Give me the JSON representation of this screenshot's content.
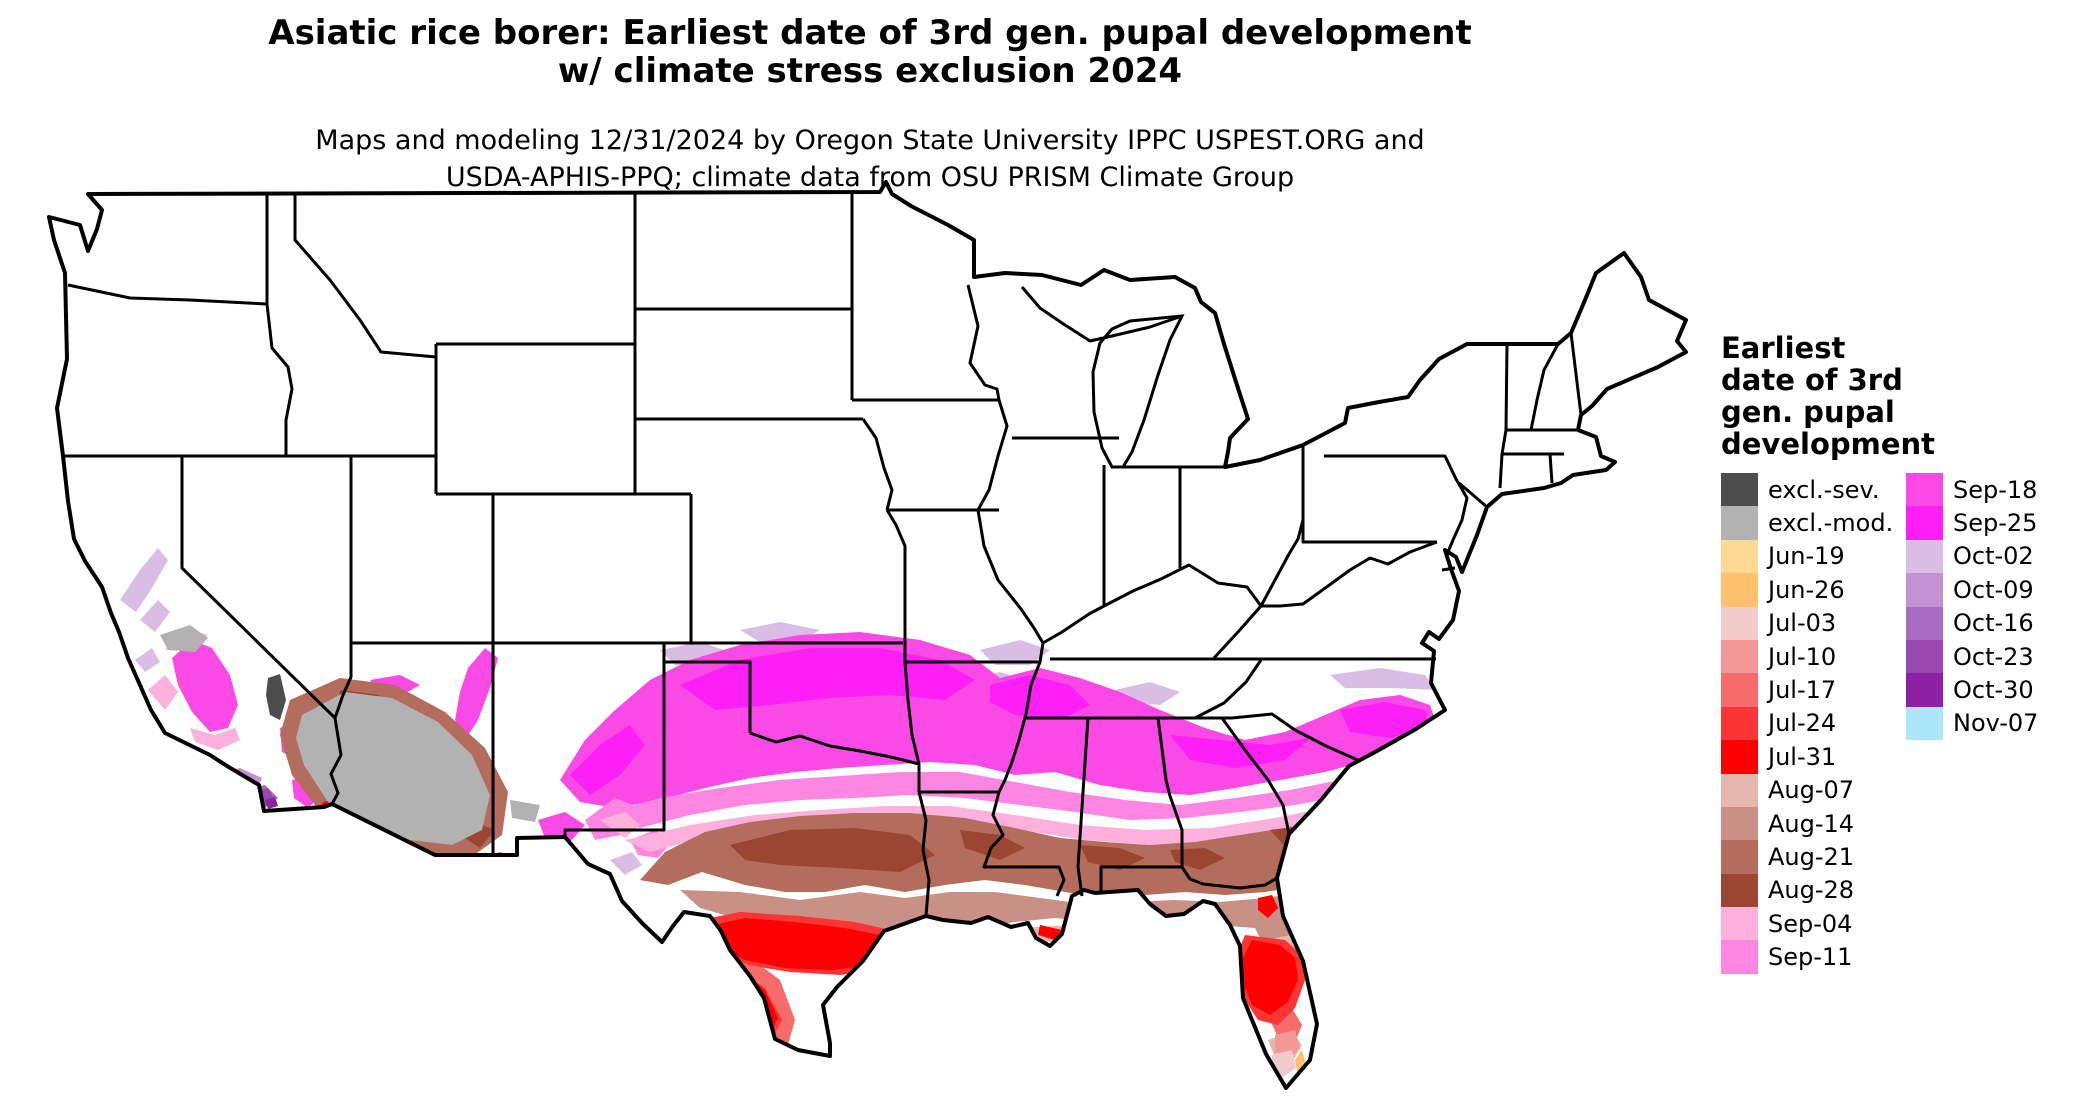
{
  "title": {
    "line1": "Asiatic rice borer: Earliest date of 3rd gen. pupal development",
    "line2": "w/ climate stress exclusion 2024"
  },
  "subtitle": {
    "line1": "Maps and modeling 12/31/2024 by Oregon State University IPPC USPEST.ORG and",
    "line2": "USDA-APHIS-PPQ; climate data from OSU PRISM Climate Group"
  },
  "legend": {
    "title": "Earliest\ndate of 3rd\ngen. pupal\ndevelopment",
    "column1": [
      {
        "label": "excl.-sev.",
        "color": "#4d4d4d"
      },
      {
        "label": "excl.-mod.",
        "color": "#b2b2b2"
      },
      {
        "label": "Jun-19",
        "color": "#ffd894"
      },
      {
        "label": "Jun-26",
        "color": "#ffc16e"
      },
      {
        "label": "Jul-03",
        "color": "#f2cbcb"
      },
      {
        "label": "Jul-10",
        "color": "#f29897"
      },
      {
        "label": "Jul-17",
        "color": "#f76b6b"
      },
      {
        "label": "Jul-24",
        "color": "#fb3434"
      },
      {
        "label": "Jul-31",
        "color": "#fe0000"
      },
      {
        "label": "Aug-07",
        "color": "#e5b7ae"
      },
      {
        "label": "Aug-14",
        "color": "#ca9086"
      },
      {
        "label": "Aug-21",
        "color": "#b46c5c"
      },
      {
        "label": "Aug-28",
        "color": "#9a4632"
      },
      {
        "label": "Sep-04",
        "color": "#feb1dd"
      },
      {
        "label": "Sep-11",
        "color": "#fe86e3"
      }
    ],
    "column2": [
      {
        "label": "Sep-18",
        "color": "#fb49e6"
      },
      {
        "label": "Sep-25",
        "color": "#fe1ef6"
      },
      {
        "label": "Oct-02",
        "color": "#d9bde5"
      },
      {
        "label": "Oct-09",
        "color": "#c292d3"
      },
      {
        "label": "Oct-16",
        "color": "#a86bc2"
      },
      {
        "label": "Oct-23",
        "color": "#9948ae"
      },
      {
        "label": "Oct-30",
        "color": "#8c22a3"
      },
      {
        "label": "Nov-07",
        "color": "#abe7f9"
      }
    ]
  },
  "map": {
    "outline_color": "#000000",
    "land_color": "#ffffff",
    "palette": {
      "sev": "#4d4d4d",
      "mod": "#b2b2b2",
      "jun19": "#ffd894",
      "jun26": "#ffc16e",
      "jul03": "#f2cbcb",
      "jul10": "#f29897",
      "jul17": "#f76b6b",
      "jul24": "#fb3434",
      "jul31": "#fe0000",
      "aug07": "#e5b7ae",
      "aug14": "#ca9086",
      "aug21": "#b46c5c",
      "aug28": "#9a4632",
      "sep04": "#feb1dd",
      "sep11": "#fe86e3",
      "sep18": "#fb49e6",
      "sep25": "#fe1ef6",
      "oct02": "#d9bde5",
      "oct09": "#c292d3",
      "oct16": "#a86bc2",
      "oct23": "#9948ae",
      "oct30": "#8c22a3",
      "nov07": "#abe7f9"
    }
  }
}
